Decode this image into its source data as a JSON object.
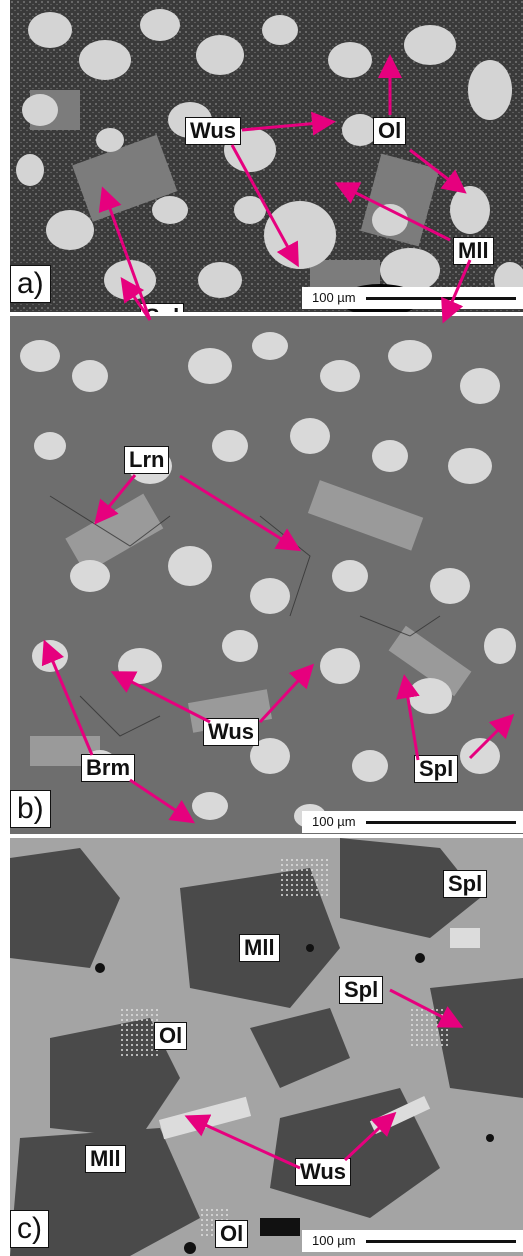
{
  "panels": [
    {
      "id": "a",
      "label": "a)",
      "scale": "100 µm",
      "phases": [
        "Wus",
        "Ol",
        "Mll",
        "Spl"
      ]
    },
    {
      "id": "b",
      "label": "b)",
      "scale": "100 µm",
      "phases": [
        "Lrn",
        "Wus",
        "Brm",
        "Spl"
      ]
    },
    {
      "id": "c",
      "label": "c)",
      "scale": "100 µm",
      "phases": [
        "Spl",
        "Mll",
        "Spl",
        "Ol",
        "Mll",
        "Wus",
        "Ol"
      ]
    }
  ],
  "colors": {
    "arrow": "#e6007e",
    "label_bg": "#ffffff",
    "label_border": "#111111"
  }
}
